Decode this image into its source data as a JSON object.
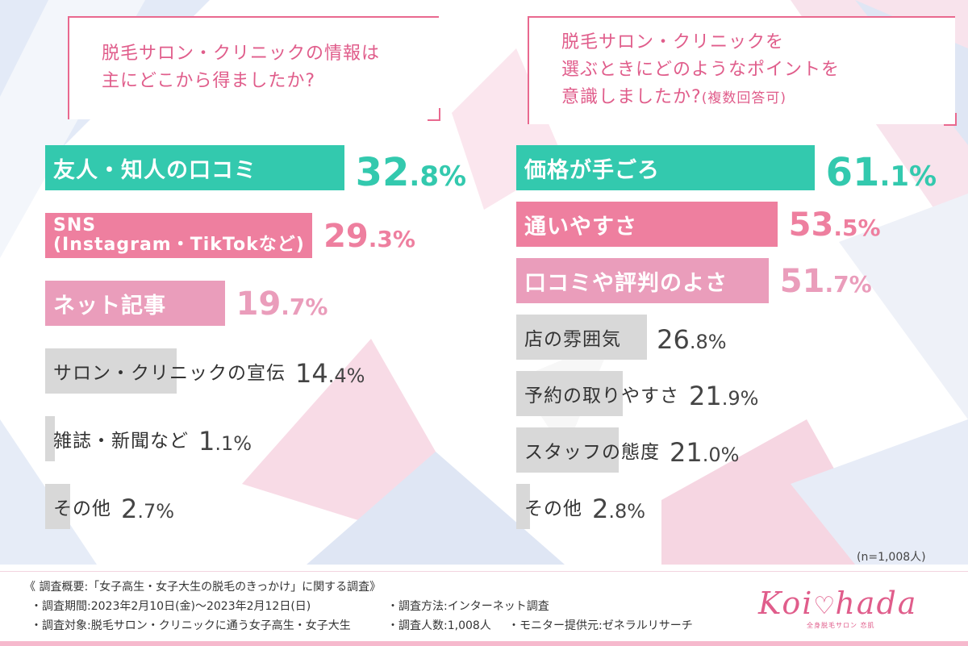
{
  "colors": {
    "teal": "#33c9ae",
    "pink": "#ee7f9f",
    "pink_light": "#ea9dbb",
    "gray": "#d8d8d8",
    "accent_text": "#e05d8b"
  },
  "question_left": "脱毛サロン・クリニックの情報は\n主にどこから得ましたか?",
  "question_right": {
    "text": "脱毛サロン・クリニックを\n選ぶときにどのようなポイントを\n意識しましたか?",
    "suffix": "(複数回答可)"
  },
  "chart_data": [
    {
      "type": "bar",
      "title": "脱毛サロン・クリニックの情報は主にどこから得ましたか?",
      "categories": [
        "友人・知人の口コミ",
        "SNS(Instagram・TikTokなど)",
        "ネット記事",
        "サロン・クリニックの宣伝",
        "雑誌・新聞など",
        "その他"
      ],
      "label_lines": [
        [
          "友人・知人の口コミ"
        ],
        [
          "SNS",
          "(Instagram・TikTokなど)"
        ],
        [
          "ネット記事"
        ],
        [
          "サロン・クリニックの宣伝"
        ],
        [
          "雑誌・新聞など"
        ],
        [
          "その他"
        ]
      ],
      "values": [
        32.8,
        29.3,
        19.7,
        14.4,
        1.1,
        2.7
      ],
      "value_labels": [
        [
          "32",
          ".8%"
        ],
        [
          "29",
          ".3%"
        ],
        [
          "19",
          ".7%"
        ],
        [
          "14",
          ".4%"
        ],
        [
          "1",
          ".1%"
        ],
        [
          "2",
          ".7%"
        ]
      ],
      "bar_colors": [
        "#33c9ae",
        "#ee7f9f",
        "#ea9dbb",
        "#d8d8d8",
        "#d8d8d8",
        "#d8d8d8"
      ],
      "value_colors": [
        "#33c9ae",
        "#ee7f9f",
        "#ea9dbb",
        "#444444",
        "#444444",
        "#444444"
      ],
      "unit": "%"
    },
    {
      "type": "bar",
      "title": "脱毛サロン・クリニックを選ぶときにどのようなポイントを意識しましたか?(複数回答可)",
      "categories": [
        "価格が手ごろ",
        "通いやすさ",
        "口コミや評判のよさ",
        "店の雰囲気",
        "予約の取りやすさ",
        "スタッフの態度",
        "その他"
      ],
      "label_lines": [
        [
          "価格が手ごろ"
        ],
        [
          "通いやすさ"
        ],
        [
          "口コミや評判のよさ"
        ],
        [
          "店の雰囲気"
        ],
        [
          "予約の取りやすさ"
        ],
        [
          "スタッフの態度"
        ],
        [
          "その他"
        ]
      ],
      "values": [
        61.1,
        53.5,
        51.7,
        26.8,
        21.9,
        21.0,
        2.8
      ],
      "value_labels": [
        [
          "61",
          ".1%"
        ],
        [
          "53",
          ".5%"
        ],
        [
          "51",
          ".7%"
        ],
        [
          "26",
          ".8%"
        ],
        [
          "21",
          ".9%"
        ],
        [
          "21",
          ".0%"
        ],
        [
          "2",
          ".8%"
        ]
      ],
      "bar_colors": [
        "#33c9ae",
        "#ee7f9f",
        "#ea9dbb",
        "#d8d8d8",
        "#d8d8d8",
        "#d8d8d8",
        "#d8d8d8"
      ],
      "value_colors": [
        "#33c9ae",
        "#ee7f9f",
        "#ea9dbb",
        "#444444",
        "#444444",
        "#444444",
        "#444444"
      ],
      "unit": "%"
    }
  ],
  "sample_note": "(n=1,008人)",
  "footer": {
    "title": "《 調査概要:「女子高生・女子大生の脱毛のきっかけ」に関する調査》",
    "period": "・調査期間:2023年2月10日(金)〜2023年2月12日(日)",
    "method": "・調査方法:インターネット調査",
    "target": "・調査対象:脱毛サロン・クリニックに通う女子高生・女子大生",
    "count": "・調査人数:1,008人",
    "provider": "・モニター提供元:ゼネラルリサーチ"
  },
  "logo": {
    "left": "Koi",
    "right": "hada",
    "tagline": "全身脱毛サロン 恋肌"
  }
}
